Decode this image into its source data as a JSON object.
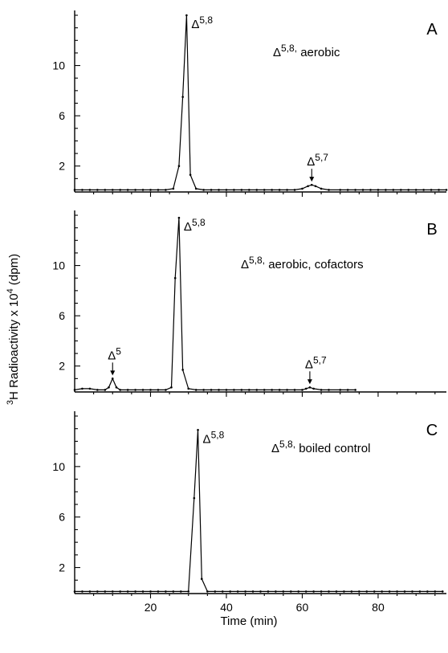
{
  "figure": {
    "ylabel": "³H Radioactivity x 10⁴ (dpm)",
    "xlabel": "Time (min)"
  },
  "chart_data": [
    {
      "type": "line",
      "panel_letter": "A",
      "condition": "Δ5,8, aerobic",
      "xlim": [
        0,
        98
      ],
      "ylim": [
        0,
        14
      ],
      "xticks": [
        20,
        40,
        60,
        80
      ],
      "xtick_labels": [
        "",
        "",
        "",
        ""
      ],
      "yticks": [
        2,
        6,
        10
      ],
      "ytick_labels": [
        "2",
        "6",
        "10"
      ],
      "series": [
        {
          "x": [
            0,
            2,
            4,
            6,
            8,
            10,
            12,
            14,
            16,
            18,
            20,
            22,
            24,
            26,
            27.5,
            28.5,
            29.5,
            30.5,
            32,
            34,
            36,
            38,
            40,
            42,
            44,
            46,
            48,
            50,
            52,
            54,
            56,
            58,
            60,
            61.5,
            62.5,
            63.5,
            65,
            67,
            70,
            72,
            74,
            76,
            78,
            80,
            82,
            84,
            86,
            88,
            90,
            92,
            94,
            96,
            98
          ],
          "y": [
            0.1,
            0.1,
            0.1,
            0.1,
            0.1,
            0.1,
            0.1,
            0.1,
            0.1,
            0.1,
            0.1,
            0.1,
            0.1,
            0.2,
            2.0,
            7.5,
            14.0,
            1.3,
            0.2,
            0.1,
            0.1,
            0.1,
            0.1,
            0.1,
            0.1,
            0.1,
            0.1,
            0.1,
            0.1,
            0.1,
            0.1,
            0.1,
            0.2,
            0.4,
            0.5,
            0.4,
            0.2,
            0.1,
            0.1,
            0.1,
            0.1,
            0.1,
            0.1,
            0.1,
            0.1,
            0.1,
            0.1,
            0.1,
            0.1,
            0.1,
            0.1,
            0.1,
            0.1
          ]
        }
      ],
      "annotations": [
        {
          "label_base": "Δ",
          "label_sup": "5,8",
          "x": 29.5,
          "y": 14.0,
          "arrow": false
        },
        {
          "label_base": "Δ",
          "label_sup": "5,7",
          "x": 62.5,
          "y": 0.5,
          "arrow": true
        }
      ]
    },
    {
      "type": "line",
      "panel_letter": "B",
      "condition": "Δ5,8, aerobic, cofactors",
      "xlim": [
        0,
        98
      ],
      "ylim": [
        0,
        14
      ],
      "xticks": [
        20,
        40,
        60,
        80
      ],
      "xtick_labels": [
        "",
        "",
        "",
        ""
      ],
      "yticks": [
        2,
        6,
        10
      ],
      "ytick_labels": [
        "2",
        "6",
        "10"
      ],
      "series": [
        {
          "x": [
            0,
            2,
            4,
            6,
            8,
            9,
            10,
            11,
            12,
            14,
            16,
            18,
            20,
            22,
            24,
            25.5,
            26.5,
            27.5,
            28.5,
            30,
            32,
            34,
            36,
            38,
            40,
            42,
            44,
            46,
            48,
            50,
            52,
            54,
            56,
            58,
            60,
            61,
            62,
            63,
            65,
            67,
            70,
            72,
            74
          ],
          "y": [
            0.1,
            0.2,
            0.2,
            0.1,
            0.1,
            0.3,
            1.0,
            0.3,
            0.1,
            0.1,
            0.1,
            0.1,
            0.1,
            0.1,
            0.1,
            0.3,
            9.0,
            13.8,
            1.7,
            0.2,
            0.1,
            0.1,
            0.1,
            0.1,
            0.1,
            0.1,
            0.1,
            0.1,
            0.1,
            0.1,
            0.1,
            0.1,
            0.1,
            0.1,
            0.1,
            0.2,
            0.3,
            0.2,
            0.1,
            0.1,
            0.1,
            0.1,
            0.1
          ]
        }
      ],
      "annotations": [
        {
          "label_base": "Δ",
          "label_sup": "5",
          "x": 10,
          "y": 1.0,
          "arrow": true
        },
        {
          "label_base": "Δ",
          "label_sup": "5,8",
          "x": 27.5,
          "y": 13.8,
          "arrow": false
        },
        {
          "label_base": "Δ",
          "label_sup": "5,7",
          "x": 62,
          "y": 0.3,
          "arrow": true
        }
      ]
    },
    {
      "type": "line",
      "panel_letter": "C",
      "condition": "Δ5,8, boiled control",
      "xlim": [
        0,
        98
      ],
      "ylim": [
        0,
        14
      ],
      "xticks": [
        20,
        40,
        60,
        80
      ],
      "xtick_labels": [
        "20",
        "40",
        "60",
        "80"
      ],
      "yticks": [
        2,
        6,
        10
      ],
      "ytick_labels": [
        "2",
        "6",
        "10"
      ],
      "series": [
        {
          "x": [
            0,
            2,
            4,
            6,
            8,
            10,
            12,
            14,
            16,
            18,
            20,
            22,
            24,
            26,
            28,
            30,
            31.5,
            32.5,
            33.5,
            35,
            37,
            39,
            41,
            43,
            45,
            47,
            49,
            51,
            53,
            55,
            57,
            59,
            61,
            63,
            65,
            67,
            69,
            71,
            73,
            75,
            77,
            79,
            81,
            83,
            85,
            87,
            89,
            91,
            93,
            95,
            97
          ],
          "y": [
            0.1,
            0.1,
            0.1,
            0.1,
            0.1,
            0.1,
            0.1,
            0.1,
            0.1,
            0.1,
            0.1,
            0.1,
            0.1,
            0.1,
            0.1,
            0.1,
            7.5,
            12.9,
            1.1,
            0.1,
            0.1,
            0.1,
            0.1,
            0.1,
            0.1,
            0.1,
            0.1,
            0.1,
            0.1,
            0.1,
            0.1,
            0.1,
            0.1,
            0.1,
            0.1,
            0.1,
            0.1,
            0.1,
            0.1,
            0.1,
            0.1,
            0.1,
            0.1,
            0.1,
            0.1,
            0.1,
            0.1,
            0.1,
            0.1,
            0.1,
            0.1
          ]
        }
      ],
      "annotations": [
        {
          "label_base": "Δ",
          "label_sup": "5,8",
          "x": 32.5,
          "y": 12.9,
          "arrow": false
        }
      ]
    }
  ]
}
